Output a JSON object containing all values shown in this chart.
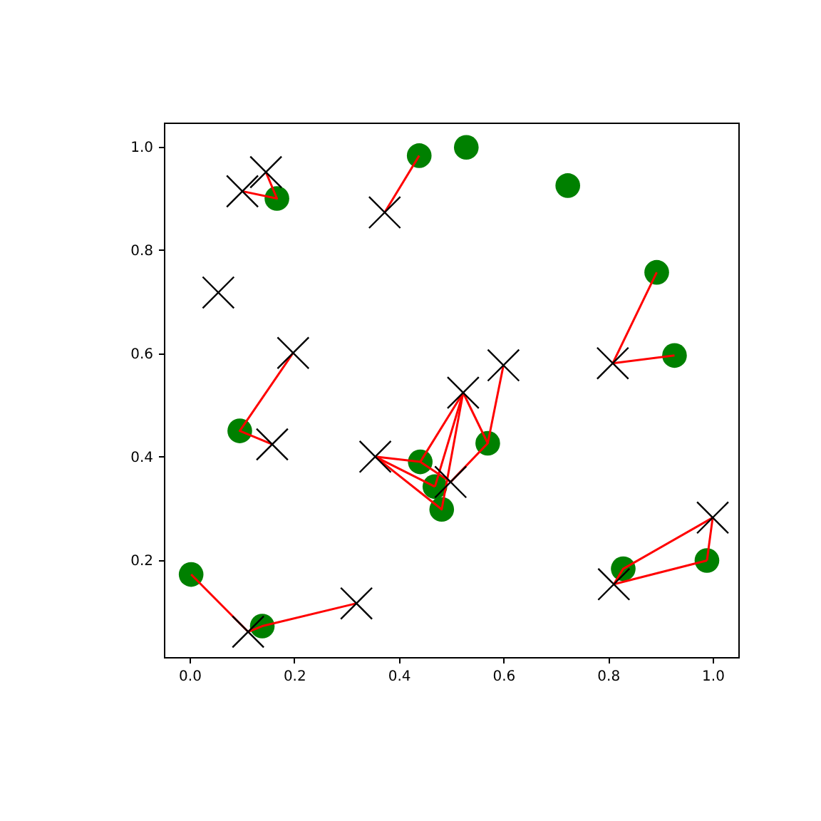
{
  "chart_data": {
    "type": "scatter",
    "xlim": [
      -0.049,
      1.049
    ],
    "ylim": [
      0.012,
      1.047
    ],
    "xticks": [
      {
        "value": 0,
        "label": "0.0"
      },
      {
        "value": 0.2,
        "label": "0.2"
      },
      {
        "value": 0.4,
        "label": "0.4"
      },
      {
        "value": 0.6,
        "label": "0.6"
      },
      {
        "value": 0.8,
        "label": "0.8"
      },
      {
        "value": 1,
        "label": "1.0"
      }
    ],
    "yticks": [
      {
        "value": 0.2,
        "label": "0.2"
      },
      {
        "value": 0.4,
        "label": "0.4"
      },
      {
        "value": 0.6,
        "label": "0.6"
      },
      {
        "value": 0.8,
        "label": "0.8"
      },
      {
        "value": 1,
        "label": "1.0"
      }
    ],
    "grid": false,
    "series": [
      {
        "type": "scatter",
        "marker": "circle",
        "color": "#008000",
        "x": [
          0.003,
          0.139,
          0.096,
          0.167,
          0.439,
          0.529,
          0.723,
          0.893,
          0.927,
          0.441,
          0.469,
          0.482,
          0.57,
          0.829,
          0.989
        ],
        "values": [
          0.172,
          0.072,
          0.45,
          0.9,
          0.983,
          0.999,
          0.925,
          0.757,
          0.596,
          0.39,
          0.342,
          0.298,
          0.426,
          0.183,
          0.199
        ]
      },
      {
        "type": "line",
        "color": "#ff0000",
        "x": [
          0.146,
          0.167,
          0.101
        ],
        "values": [
          0.951,
          0.9,
          0.914
        ]
      },
      {
        "type": "line",
        "color": "#ff0000",
        "x": [
          0.439,
          0.373
        ],
        "values": [
          0.983,
          0.873
        ]
      },
      {
        "type": "line",
        "color": "#ff0000",
        "x": [
          0.198,
          0.096,
          0.158
        ],
        "values": [
          0.601,
          0.45,
          0.424
        ]
      },
      {
        "type": "line",
        "color": "#ff0000",
        "x": [
          0.893,
          0.809,
          0.927
        ],
        "values": [
          0.757,
          0.581,
          0.596
        ]
      },
      {
        "type": "line",
        "color": "#ff0000",
        "x": [
          0.003,
          0.112,
          0.139,
          0.319
        ],
        "values": [
          0.172,
          0.061,
          0.072,
          0.116
        ]
      },
      {
        "type": "line",
        "color": "#ff0000",
        "x": [
          0.469,
          0.355,
          0.441,
          0.499,
          0.57,
          0.6
        ],
        "values": [
          0.342,
          0.4,
          0.39,
          0.351,
          0.426,
          0.577
        ]
      },
      {
        "type": "line",
        "color": "#ff0000",
        "x": [
          0.355,
          0.482,
          0.523,
          0.441
        ],
        "values": [
          0.4,
          0.298,
          0.524,
          0.39
        ]
      },
      {
        "type": "line",
        "color": "#ff0000",
        "x": [
          0.523,
          0.469
        ],
        "values": [
          0.524,
          0.342
        ]
      },
      {
        "type": "line",
        "color": "#ff0000",
        "x": [
          0.523,
          0.57
        ],
        "values": [
          0.524,
          0.426
        ]
      },
      {
        "type": "line",
        "color": "#ff0000",
        "x": [
          0.811,
          0.829,
          1.0,
          0.989
        ],
        "values": [
          0.153,
          0.183,
          0.282,
          0.199
        ]
      },
      {
        "type": "line",
        "color": "#ff0000",
        "x": [
          0.989,
          0.811
        ],
        "values": [
          0.199,
          0.153
        ]
      },
      {
        "type": "scatter",
        "marker": "cross",
        "color": "#000000",
        "x": [
          0.146,
          0.101,
          0.373,
          0.055,
          0.198,
          0.158,
          0.355,
          0.112,
          0.319,
          0.809,
          0.6,
          0.523,
          0.499,
          0.811,
          1.0
        ],
        "values": [
          0.951,
          0.914,
          0.873,
          0.718,
          0.601,
          0.424,
          0.4,
          0.061,
          0.116,
          0.581,
          0.577,
          0.524,
          0.351,
          0.153,
          0.282
        ]
      }
    ]
  }
}
